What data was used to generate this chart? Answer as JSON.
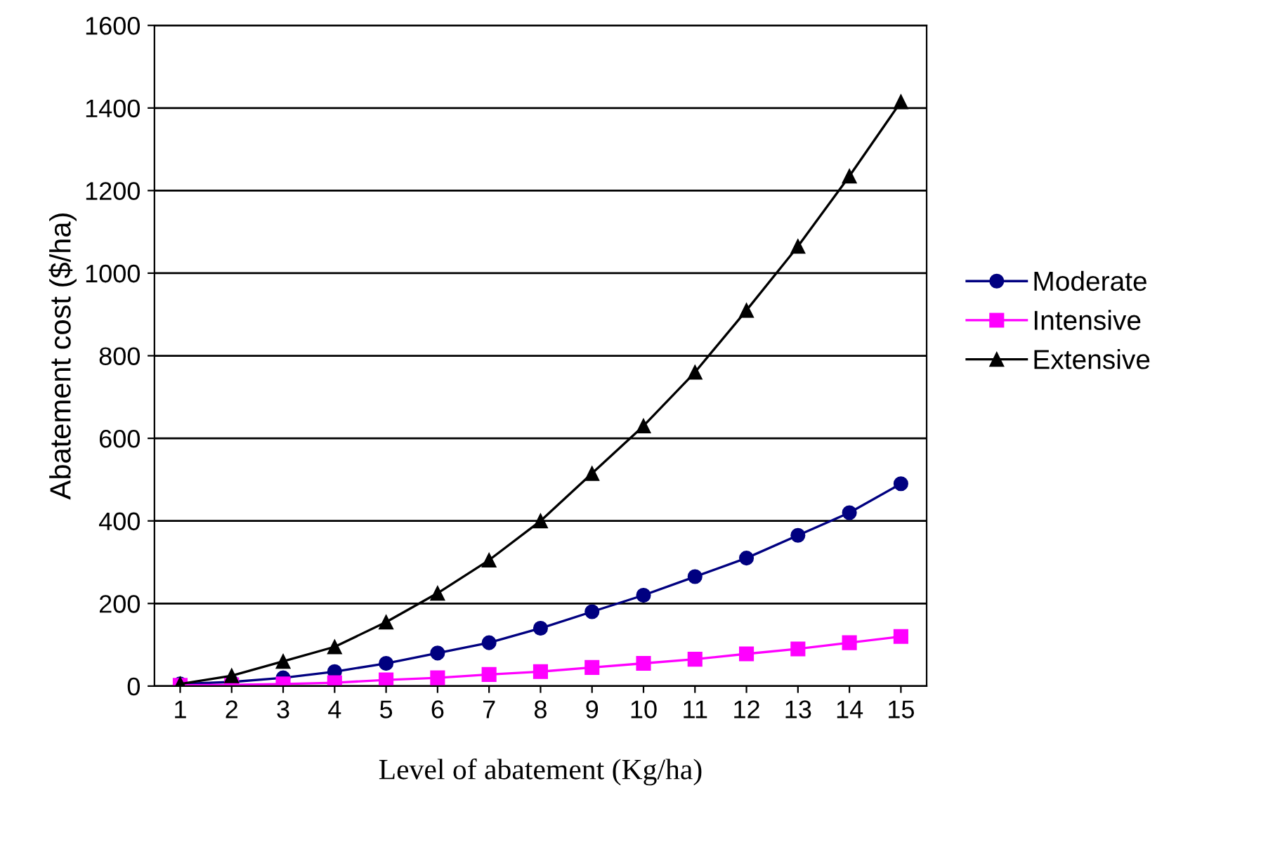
{
  "chart_data": {
    "type": "line",
    "xlabel": "Level of abatement (Kg/ha)",
    "ylabel": "Abatement cost ($/ha)",
    "categories": [
      "1",
      "2",
      "3",
      "4",
      "5",
      "6",
      "7",
      "8",
      "9",
      "10",
      "11",
      "12",
      "13",
      "14",
      "15"
    ],
    "series": [
      {
        "name": "Moderate",
        "color": "#000080",
        "marker": "circle",
        "values": [
          5,
          10,
          20,
          35,
          55,
          80,
          105,
          140,
          180,
          220,
          265,
          310,
          365,
          420,
          490
        ]
      },
      {
        "name": "Intensive",
        "color": "#ff00ff",
        "marker": "square",
        "values": [
          2,
          3,
          5,
          8,
          15,
          20,
          28,
          35,
          45,
          55,
          65,
          78,
          90,
          105,
          120
        ]
      },
      {
        "name": "Extensive",
        "color": "#000000",
        "marker": "triangle",
        "values": [
          5,
          25,
          60,
          95,
          155,
          225,
          305,
          400,
          515,
          630,
          760,
          910,
          1065,
          1235,
          1415
        ]
      }
    ],
    "ylim": [
      0,
      1600
    ],
    "yticks": [
      0,
      200,
      400,
      600,
      800,
      1000,
      1200,
      1400,
      1600
    ],
    "grid": "y",
    "legend": "right",
    "line_style": "solid"
  }
}
